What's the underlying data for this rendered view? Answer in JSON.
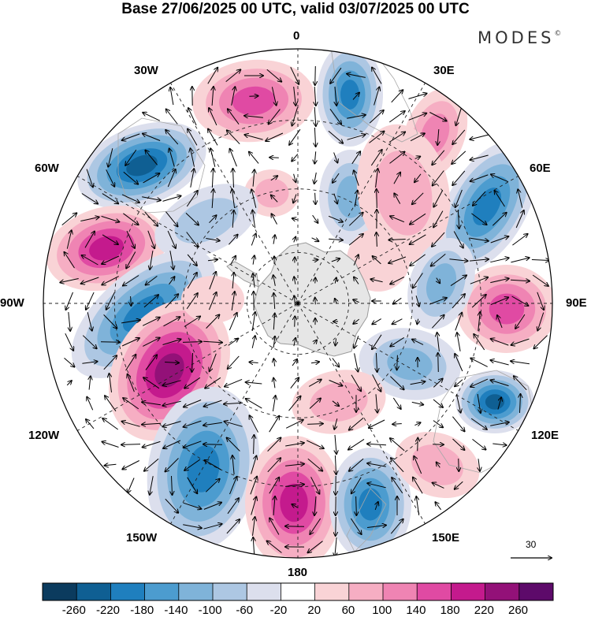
{
  "title": "Base 27/06/2025 00 UTC, valid 03/07/2025 00 UTC",
  "brand": "MODES",
  "brand_mark": "©",
  "map": {
    "projection": "south-polar-stereographic",
    "labels": {
      "lon_0": "0",
      "lon_30e": "30E",
      "lon_60e": "60E",
      "lon_90e": "90E",
      "lon_120e": "120E",
      "lon_150e": "150E",
      "lon_180": "180",
      "lon_150w": "150W",
      "lon_120w": "120W",
      "lon_90w": "90W",
      "lon_60w": "60W",
      "lon_30w": "30W"
    },
    "reference_vector_label": "30",
    "land_color": "#e6e6e6",
    "coast_color": "#999999",
    "grid_color": "#000000"
  },
  "colorbar": {
    "colors": [
      "#0b3b5e",
      "#0f5f93",
      "#1f7fbe",
      "#4c9ccf",
      "#7fb3d9",
      "#adc7e3",
      "#dcdfed",
      "#ffffff",
      "#f9d3d6",
      "#f6aec3",
      "#ef84b3",
      "#e04aa3",
      "#c41a8d",
      "#931178",
      "#5d0a6a"
    ],
    "labels": [
      "-260",
      "-220",
      "-180",
      "-140",
      "-100",
      "-60",
      "-20",
      "20",
      "60",
      "100",
      "140",
      "180",
      "220",
      "260"
    ]
  }
}
